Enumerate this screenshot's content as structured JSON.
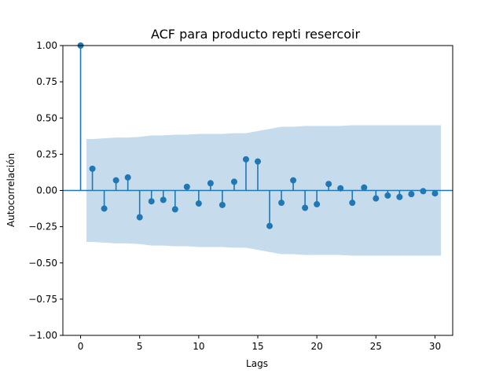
{
  "chart_data": {
    "type": "stem",
    "title": "ACF para producto  repti resercoir",
    "xlabel": "Lags",
    "ylabel": "Autocorrelación",
    "xlim": [
      -1.5,
      31.5
    ],
    "ylim": [
      -1.0,
      1.0
    ],
    "xticks": [
      0,
      5,
      10,
      15,
      20,
      25,
      30
    ],
    "yticks": [
      -1.0,
      -0.75,
      -0.5,
      -0.25,
      0.0,
      0.25,
      0.5,
      0.75,
      1.0
    ],
    "ytick_labels": [
      "−1.00",
      "−0.75",
      "−0.50",
      "−0.25",
      "0.00",
      "0.25",
      "0.50",
      "0.75",
      "1.00"
    ],
    "grid": false,
    "colors": {
      "stem": "#1f77b4",
      "band": "#c6dbec"
    },
    "lags": [
      0,
      1,
      2,
      3,
      4,
      5,
      6,
      7,
      8,
      9,
      10,
      11,
      12,
      13,
      14,
      15,
      16,
      17,
      18,
      19,
      20,
      21,
      22,
      23,
      24,
      25,
      26,
      27,
      28,
      29,
      30
    ],
    "acf": [
      1.0,
      0.15,
      -0.125,
      0.07,
      0.09,
      -0.185,
      -0.075,
      -0.065,
      -0.13,
      0.025,
      -0.09,
      0.05,
      -0.1,
      0.06,
      0.215,
      0.2,
      -0.245,
      -0.085,
      0.07,
      -0.12,
      -0.095,
      0.045,
      0.015,
      -0.085,
      0.02,
      -0.055,
      -0.035,
      -0.045,
      -0.025,
      -0.005,
      -0.02
    ],
    "confidence_band": [
      0.355,
      0.36,
      0.365,
      0.365,
      0.37,
      0.38,
      0.38,
      0.385,
      0.385,
      0.39,
      0.39,
      0.39,
      0.395,
      0.395,
      0.41,
      0.425,
      0.44,
      0.44,
      0.445,
      0.445,
      0.445,
      0.445,
      0.45,
      0.45,
      0.45,
      0.45,
      0.45,
      0.45,
      0.45,
      0.45
    ]
  }
}
